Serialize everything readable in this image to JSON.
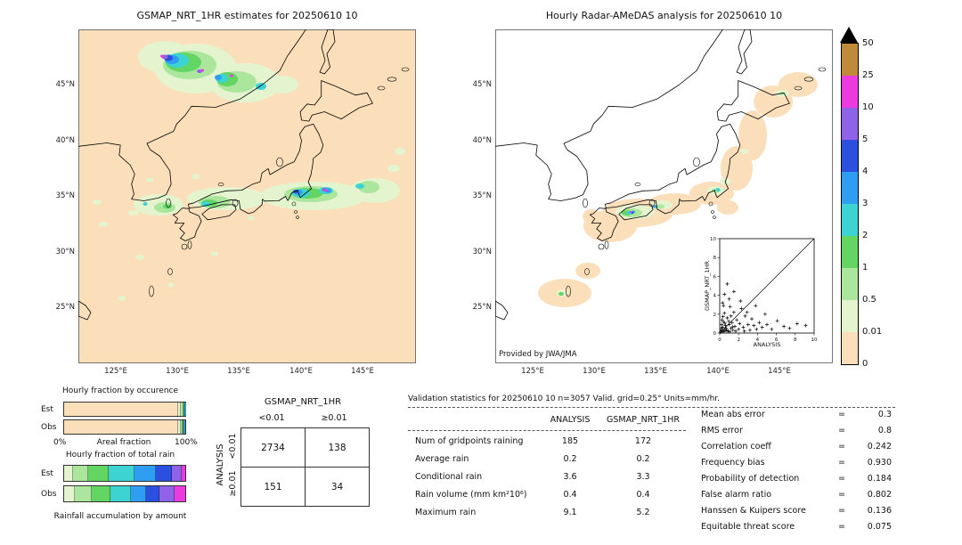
{
  "left_map": {
    "title": "GSMAP_NRT_1HR estimates for 20250610 10",
    "lat_ticks": [
      "45°N",
      "40°N",
      "35°N",
      "30°N",
      "25°N"
    ],
    "lon_ticks": [
      "125°E",
      "130°E",
      "135°E",
      "140°E",
      "145°E"
    ]
  },
  "right_map": {
    "title": "Hourly Radar-AMeDAS analysis for 20250610 10",
    "credit": "Provided by JWA/JMA",
    "lat_ticks": [
      "45°N",
      "40°N",
      "35°N",
      "30°N",
      "25°N"
    ],
    "lon_ticks": [
      "125°E",
      "130°E",
      "135°E",
      "140°E",
      "145°E"
    ],
    "inset": {
      "xlabel": "ANALYSIS",
      "ylabel": "GSMAP_NRT_1HR",
      "ticks": [
        0,
        2,
        4,
        6,
        8,
        10
      ]
    }
  },
  "colorbar": {
    "labels": [
      "50",
      "25",
      "10",
      "5",
      "4",
      "3",
      "2",
      "1",
      "0.5",
      "0.01",
      "0"
    ],
    "segment_colors_top_to_bottom": [
      "#bf8a3a",
      "#ea3ae0",
      "#8f62e8",
      "#2b50e0",
      "#2e9df2",
      "#3ed3d3",
      "#62d562",
      "#abe69d",
      "#e4f4cf",
      "#fbdfba"
    ],
    "overflow_color": "#000000",
    "units": "mm/hr"
  },
  "occurrence": {
    "title": "Hourly fraction by occurence",
    "est_label": "Est",
    "obs_label": "Obs",
    "axis_left": "0%",
    "axis_center": "Areal fraction",
    "axis_right": "100%"
  },
  "total_rain": {
    "title": "Hourly fraction of total rain",
    "est_label": "Est",
    "obs_label": "Obs",
    "caption": "Rainfall accumulation by amount"
  },
  "contingency": {
    "col_group": "GSMAP_NRT_1HR",
    "row_group": "ANALYSIS",
    "col_labels": [
      "<0.01",
      "≥0.01"
    ],
    "row_labels": [
      "<0.01",
      "≥0.01"
    ],
    "values": [
      [
        "2734",
        "138"
      ],
      [
        "151",
        "34"
      ]
    ]
  },
  "stats": {
    "title": "Validation statistics for 20250610 10  n=3057 Valid. grid=0.25° Units=mm/hr.",
    "eq": "=",
    "columns": [
      "ANALYSIS",
      "GSMAP_NRT_1HR"
    ],
    "rows": [
      {
        "label": "Num of gridpoints raining",
        "analysis": "185",
        "gsmap": "172"
      },
      {
        "label": "Average rain",
        "analysis": "0.2",
        "gsmap": "0.2"
      },
      {
        "label": "Conditional rain",
        "analysis": "3.6",
        "gsmap": "3.3"
      },
      {
        "label": "Rain volume (mm km²10⁶)",
        "analysis": "0.4",
        "gsmap": "0.4"
      },
      {
        "label": "Maximum rain",
        "analysis": "9.1",
        "gsmap": "5.2"
      }
    ],
    "extras": [
      {
        "label": "Mean abs error",
        "value": "0.3"
      },
      {
        "label": "RMS error",
        "value": "0.8"
      },
      {
        "label": "Correlation coeff",
        "value": "0.242"
      },
      {
        "label": "Frequency bias",
        "value": "0.930"
      },
      {
        "label": "Probability of detection",
        "value": "0.184"
      },
      {
        "label": "False alarm ratio",
        "value": "0.802"
      },
      {
        "label": "Hanssen & Kuipers score",
        "value": "0.136"
      },
      {
        "label": "Equitable threat score",
        "value": "0.075"
      }
    ]
  },
  "chart_data": [
    {
      "id": "gsmap_map",
      "type": "heatmap",
      "title": "GSMAP_NRT_1HR estimates for 20250610 10",
      "x_ticks": [
        "125°E",
        "130°E",
        "135°E",
        "140°E",
        "145°E"
      ],
      "y_ticks": [
        "45°N",
        "40°N",
        "35°N",
        "30°N",
        "25°N"
      ],
      "units": "mm/hr",
      "levels": [
        0,
        0.01,
        0.5,
        1,
        2,
        3,
        4,
        5,
        10,
        25,
        50
      ],
      "summary": "Satellite precipitation field over Japan: light-rain background everywhere, a strong system over the northern Sea of Japan (44-48N, 127-137E, cores above 10 mm/hr) and a rain band along 33-36N from 127E to 147E with cores of 3-10 mm/hr east of Honshu"
    },
    {
      "id": "radar_map",
      "type": "heatmap",
      "title": "Hourly Radar-AMeDAS analysis for 20250610 10",
      "credit": "Provided by JWA/JMA",
      "x_ticks": [
        "125°E",
        "130°E",
        "135°E",
        "140°E",
        "145°E"
      ],
      "y_ticks": [
        "45°N",
        "40°N",
        "35°N",
        "30°N",
        "25°N"
      ],
      "units": "mm/hr",
      "levels": [
        0,
        0.01,
        0.5,
        1,
        2,
        3,
        4,
        5,
        10,
        25,
        50
      ],
      "summary": "Radar-gauge analysis: trace-rain swath from Okinawa across Kyushu/Shikoku and Kanto to seas east of Hokkaido; heavier cores (1-25 mm/hr) over Shikoku and Kanto"
    },
    {
      "id": "inset_scatter",
      "type": "scatter",
      "xlabel": "ANALYSIS",
      "ylabel": "GSMAP_NRT_1HR",
      "xlim": [
        0,
        10
      ],
      "ylim": [
        0,
        10
      ],
      "ticks": [
        0,
        2,
        4,
        6,
        8,
        10
      ],
      "marker": "+",
      "diagonal": true,
      "points": [
        [
          0.1,
          0.1
        ],
        [
          0.15,
          0.35
        ],
        [
          0.2,
          0.5
        ],
        [
          0.2,
          0.9
        ],
        [
          0.25,
          1.4
        ],
        [
          0.3,
          0.2
        ],
        [
          0.3,
          0.6
        ],
        [
          0.3,
          3.2
        ],
        [
          0.35,
          1.75
        ],
        [
          0.4,
          1.2
        ],
        [
          0.4,
          2.9
        ],
        [
          0.45,
          0.15
        ],
        [
          0.5,
          0.3
        ],
        [
          0.5,
          2.1
        ],
        [
          0.5,
          4.1
        ],
        [
          0.55,
          1.05
        ],
        [
          0.6,
          0.8
        ],
        [
          0.65,
          0.55
        ],
        [
          0.7,
          0.4
        ],
        [
          0.75,
          0.25
        ],
        [
          0.8,
          1.6
        ],
        [
          0.8,
          5.2
        ],
        [
          0.9,
          0.2
        ],
        [
          0.95,
          1.25
        ],
        [
          1.0,
          0.9
        ],
        [
          1.0,
          3.6
        ],
        [
          1.05,
          0.15
        ],
        [
          1.1,
          2.8
        ],
        [
          1.2,
          0.5
        ],
        [
          1.2,
          1.8
        ],
        [
          1.3,
          1.1
        ],
        [
          1.35,
          0.65
        ],
        [
          1.4,
          0.3
        ],
        [
          1.5,
          2.2
        ],
        [
          1.5,
          4.4
        ],
        [
          1.6,
          0.7
        ],
        [
          1.7,
          0.2
        ],
        [
          1.8,
          1.4
        ],
        [
          2.0,
          0.4
        ],
        [
          2.1,
          1.0
        ],
        [
          2.2,
          3.4
        ],
        [
          2.3,
          2.6
        ],
        [
          2.5,
          0.6
        ],
        [
          2.6,
          0.2
        ],
        [
          2.7,
          1.8
        ],
        [
          2.9,
          2.2
        ],
        [
          3.0,
          0.9
        ],
        [
          3.2,
          0.3
        ],
        [
          3.4,
          1.5
        ],
        [
          3.6,
          0.8
        ],
        [
          3.8,
          2.9
        ],
        [
          3.9,
          0.4
        ],
        [
          4.2,
          1.1
        ],
        [
          4.5,
          0.6
        ],
        [
          4.8,
          2.0
        ],
        [
          5.0,
          0.9
        ],
        [
          5.5,
          0.4
        ],
        [
          6.1,
          1.3
        ],
        [
          6.8,
          0.7
        ],
        [
          7.4,
          0.5
        ],
        [
          8.2,
          1.0
        ],
        [
          9.1,
          0.8
        ]
      ]
    },
    {
      "id": "areal_fraction",
      "type": "bar",
      "orientation": "horizontal",
      "stacked": true,
      "title": "Hourly fraction by occurence",
      "categories": [
        "Est",
        "Obs"
      ],
      "axis": {
        "min_label": "0%",
        "max_label": "100%",
        "label": "Areal fraction"
      },
      "series": [
        {
          "name": "0-0.01",
          "color": "#fbdfba",
          "values": [
            94.4,
            94.0
          ]
        },
        {
          "name": "0.01-0.5",
          "color": "#e4f4cf",
          "values": [
            2.4,
            2.2
          ]
        },
        {
          "name": "0.5-1",
          "color": "#abe69d",
          "values": [
            1.6,
            1.7
          ]
        },
        {
          "name": "1-2",
          "color": "#62d562",
          "values": [
            0.9,
            1.1
          ]
        },
        {
          "name": "2-3",
          "color": "#3ed3d3",
          "values": [
            0.5,
            0.6
          ]
        },
        {
          "name": "3-4",
          "color": "#2e9df2",
          "values": [
            0.2,
            0.4
          ]
        }
      ]
    },
    {
      "id": "rain_fraction",
      "type": "bar",
      "orientation": "horizontal",
      "stacked": true,
      "title": "Hourly fraction of total rain",
      "caption": "Rainfall accumulation by amount",
      "categories": [
        "Est",
        "Obs"
      ],
      "series": [
        {
          "name": "0.01-0.5",
          "color": "#e4f4cf",
          "values": [
            7,
            9
          ]
        },
        {
          "name": "0.5-1",
          "color": "#abe69d",
          "values": [
            13,
            14
          ]
        },
        {
          "name": "1-2",
          "color": "#62d562",
          "values": [
            17,
            15
          ]
        },
        {
          "name": "2-3",
          "color": "#3ed3d3",
          "values": [
            21,
            17
          ]
        },
        {
          "name": "3-4",
          "color": "#2e9df2",
          "values": [
            18,
            13
          ]
        },
        {
          "name": "4-5",
          "color": "#2b50e0",
          "values": [
            13,
            11
          ]
        },
        {
          "name": "5-10",
          "color": "#8f62e8",
          "values": [
            8,
            12
          ]
        },
        {
          "name": "10-25",
          "color": "#ea3ae0",
          "values": [
            3,
            9
          ]
        }
      ]
    },
    {
      "id": "contingency_table",
      "type": "table",
      "col_group": "GSMAP_NRT_1HR",
      "row_group": "ANALYSIS",
      "col_labels": [
        "<0.01",
        "≥0.01"
      ],
      "row_labels": [
        "<0.01",
        "≥0.01"
      ],
      "values": [
        [
          2734,
          138
        ],
        [
          151,
          34
        ]
      ]
    },
    {
      "id": "validation_stats",
      "type": "table",
      "title": "Validation statistics for 20250610 10  n=3057 Valid. grid=0.25° Units=mm/hr.",
      "columns": [
        "ANALYSIS",
        "GSMAP_NRT_1HR"
      ],
      "rows": [
        [
          "Num of gridpoints raining",
          185,
          172
        ],
        [
          "Average rain",
          0.2,
          0.2
        ],
        [
          "Conditional rain",
          3.6,
          3.3
        ],
        [
          "Rain volume (mm km²10⁶)",
          0.4,
          0.4
        ],
        [
          "Maximum rain",
          9.1,
          5.2
        ]
      ],
      "stats": [
        [
          "Mean abs error",
          0.3
        ],
        [
          "RMS error",
          0.8
        ],
        [
          "Correlation coeff",
          0.242
        ],
        [
          "Frequency bias",
          0.93
        ],
        [
          "Probability of detection",
          0.184
        ],
        [
          "False alarm ratio",
          0.802
        ],
        [
          "Hanssen & Kuipers score",
          0.136
        ],
        [
          "Equitable threat score",
          0.075
        ]
      ]
    }
  ]
}
